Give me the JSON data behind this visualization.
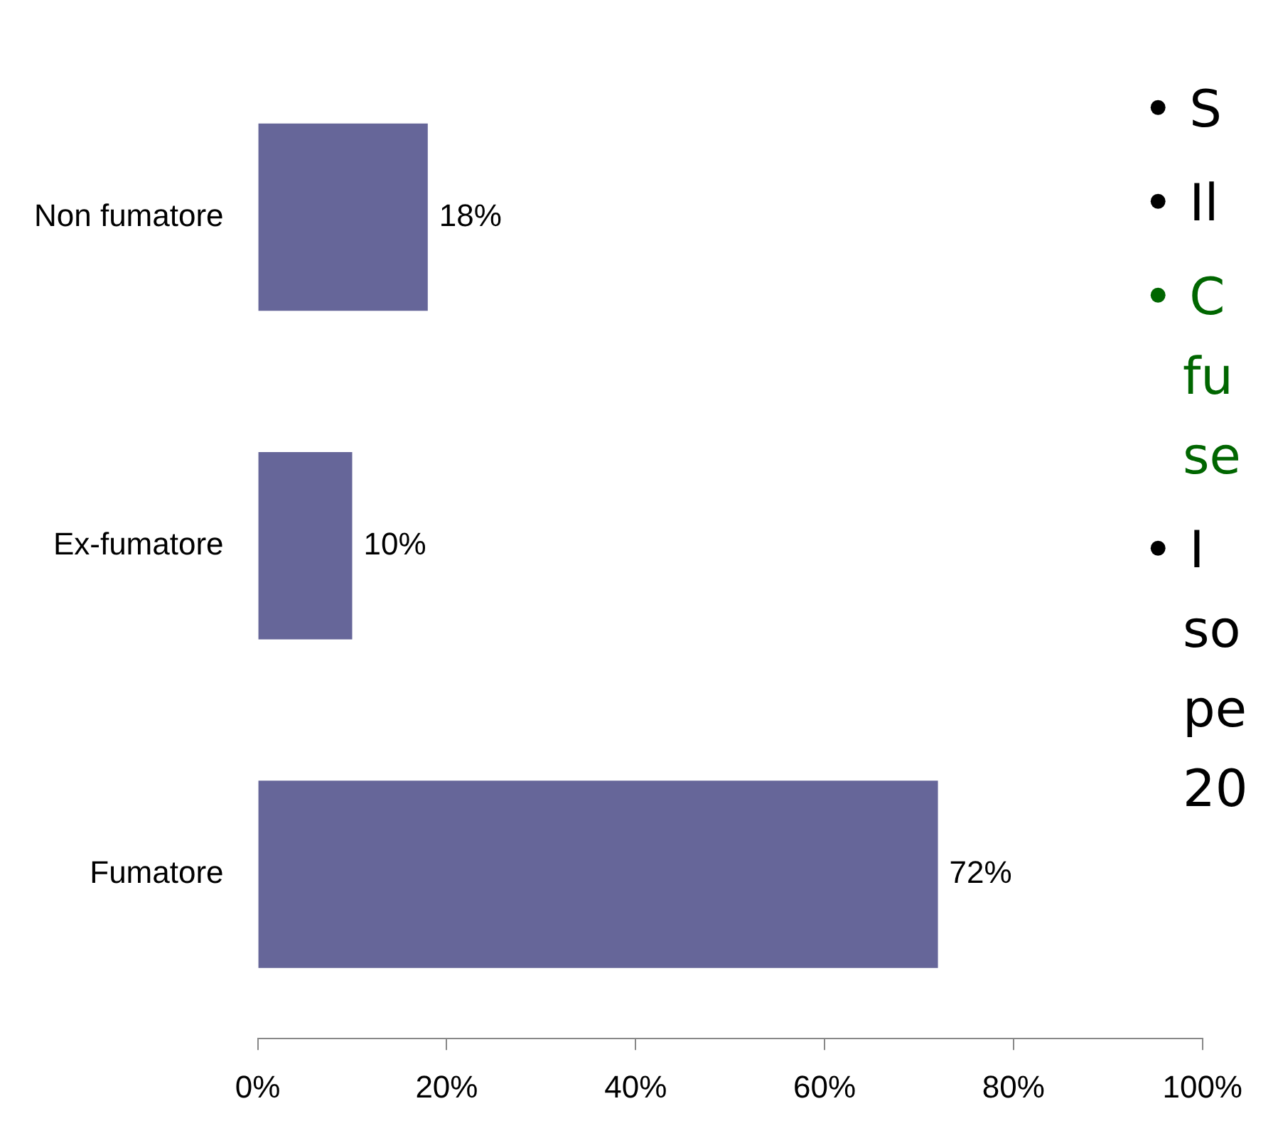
{
  "chart_data": {
    "type": "bar",
    "orientation": "horizontal",
    "categories": [
      "Non fumatore",
      "Ex-fumatore",
      "Fumatore"
    ],
    "values": [
      18,
      10,
      72
    ],
    "color": "#666699",
    "value_labels": [
      "18%",
      "10%",
      "72%"
    ],
    "xlim": [
      0,
      100
    ],
    "xticks": [
      {
        "value": 0,
        "label": "0%"
      },
      {
        "value": 20,
        "label": "20%"
      },
      {
        "value": 40,
        "label": "40%"
      },
      {
        "value": 60,
        "label": "60%"
      },
      {
        "value": 80,
        "label": "80%"
      },
      {
        "value": 100,
        "label": "100%"
      }
    ],
    "grid": false,
    "legend": false,
    "annotations": [
      "• S",
      "• Il",
      "• C fu se",
      "• I so pe 20"
    ]
  }
}
